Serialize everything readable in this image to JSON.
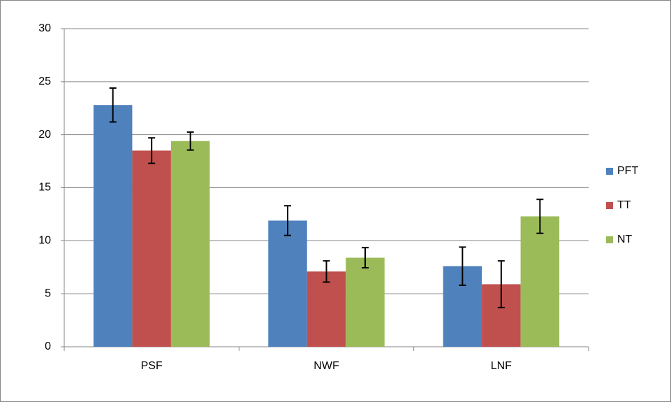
{
  "chart_data": {
    "type": "bar",
    "categories": [
      "PSF",
      "NWF",
      "LNF"
    ],
    "series": [
      {
        "name": "PFT",
        "color": "#4f81bd",
        "values": [
          22.8,
          11.9,
          7.6
        ],
        "errors": [
          1.6,
          1.4,
          1.8
        ]
      },
      {
        "name": "TT",
        "color": "#c0504d",
        "values": [
          18.5,
          7.1,
          5.9
        ],
        "errors": [
          1.2,
          1.0,
          2.2
        ]
      },
      {
        "name": "NT",
        "color": "#9bbb59",
        "values": [
          19.4,
          8.4,
          12.3
        ],
        "errors": [
          0.85,
          0.95,
          1.6
        ]
      }
    ],
    "ylim": [
      0,
      30
    ],
    "yticks": [
      0,
      5,
      10,
      15,
      20,
      25,
      30
    ],
    "grid": true,
    "legend": "right"
  }
}
